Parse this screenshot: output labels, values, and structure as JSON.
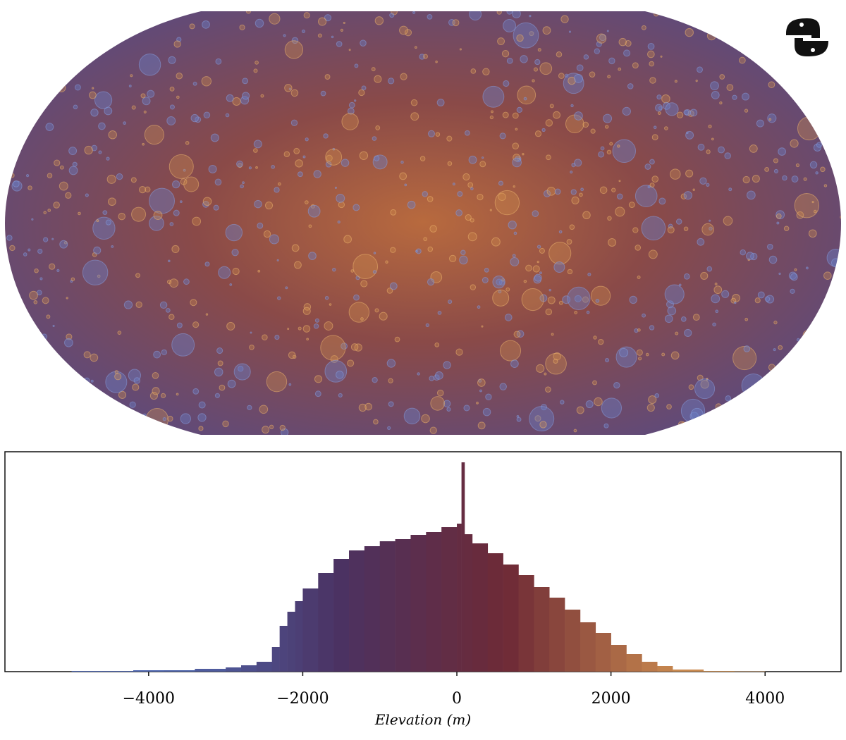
{
  "chart_data": {
    "type": "histogram",
    "xlabel": "Elevation (m)",
    "xlim": [
      -5865,
      4986
    ],
    "xticks": [
      {
        "value": -4000,
        "label": "−4000"
      },
      {
        "value": -2000,
        "label": "−2000"
      },
      0,
      2000,
      4000
    ],
    "ylim": [
      0,
      312
    ],
    "bins": [
      -5000,
      -4600,
      -4200,
      -3800,
      -3400,
      -3000,
      -2800,
      -2600,
      -2400,
      -2300,
      -2200,
      -2100,
      -2000,
      -1800,
      -1600,
      -1400,
      -1200,
      -1000,
      -800,
      -600,
      -400,
      -200,
      0,
      60,
      100,
      200,
      400,
      600,
      800,
      1000,
      1200,
      1400,
      1600,
      1800,
      2000,
      2200,
      2400,
      2600,
      2800,
      3200,
      3600,
      4000
    ],
    "counts": [
      1,
      1,
      2,
      2,
      4,
      6,
      9,
      14,
      35,
      65,
      85,
      100,
      118,
      140,
      160,
      172,
      178,
      185,
      188,
      194,
      198,
      205,
      210,
      297,
      195,
      182,
      168,
      152,
      137,
      120,
      105,
      88,
      70,
      55,
      38,
      25,
      14,
      8,
      3,
      1,
      0.5
    ],
    "colormap": [
      "#5b78c8",
      "#5068b0",
      "#4b3262",
      "#6e2a36",
      "#c8884e",
      "#e8b878"
    ]
  }
}
